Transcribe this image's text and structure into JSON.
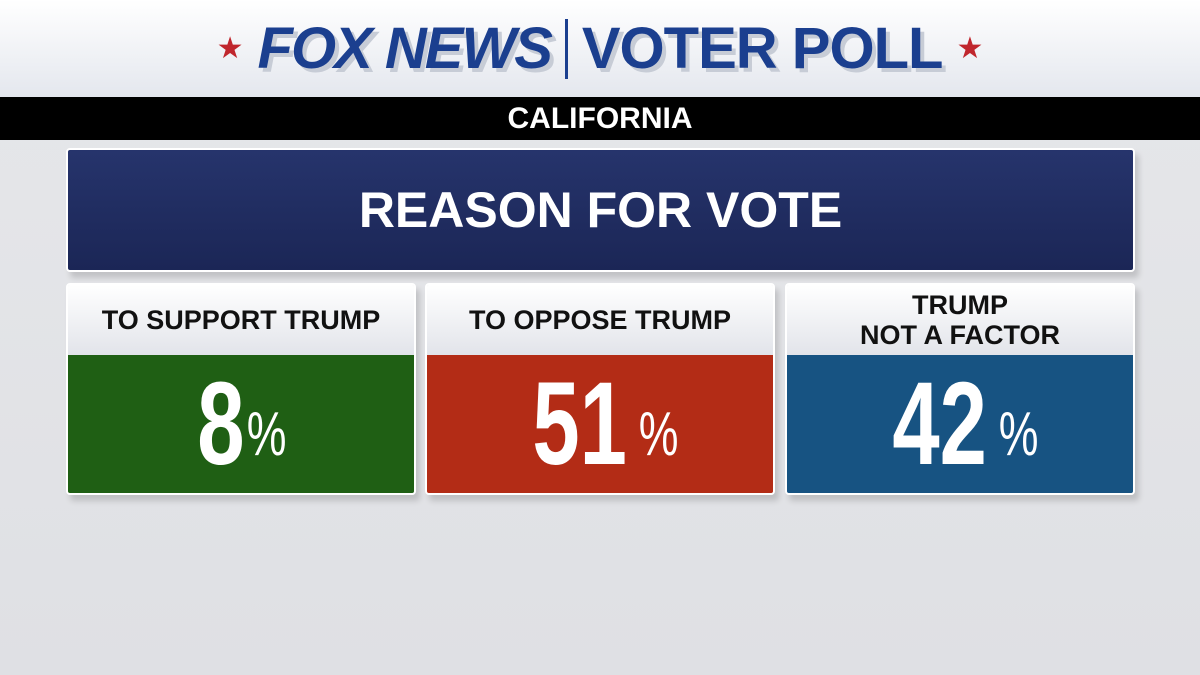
{
  "header": {
    "logo": "FOX NEWS",
    "title": "VOTER POLL"
  },
  "subheader": "CALIFORNIA",
  "title": "REASON FOR VOTE",
  "cards": [
    {
      "label_lines": [
        "TO SUPPORT TRUMP"
      ],
      "value": 8,
      "unit": "%",
      "color": "#1f5f14"
    },
    {
      "label_lines": [
        "TO OPPOSE TRUMP"
      ],
      "value": 51,
      "unit": "%",
      "color": "#b32c16"
    },
    {
      "label_lines": [
        "TRUMP",
        "NOT A FACTOR"
      ],
      "value": 42,
      "unit": "%",
      "color": "#175382"
    }
  ]
}
